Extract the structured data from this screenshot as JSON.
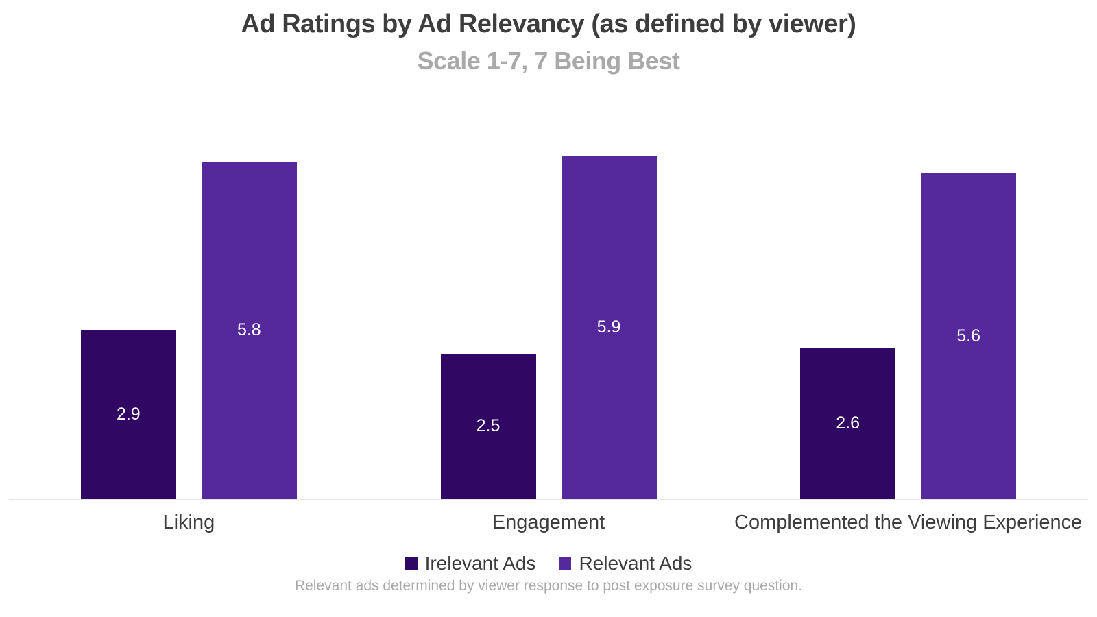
{
  "chart_data": {
    "type": "bar",
    "title": "Ad Ratings by Ad Relevancy (as defined by viewer)",
    "subtitle": "Scale 1-7, 7 Being Best",
    "footnote": "Relevant ads determined by viewer response to post exposure survey question.",
    "categories": [
      "Liking",
      "Engagement",
      "Complemented the Viewing Experience"
    ],
    "series": [
      {
        "name": "Irelevant Ads",
        "color": "#300763",
        "values": [
          2.9,
          2.5,
          2.6
        ]
      },
      {
        "name": "Relevant Ads",
        "color": "#55289b",
        "values": [
          5.8,
          5.9,
          5.6
        ]
      }
    ],
    "ylim": [
      0,
      7
    ],
    "value_labels": true,
    "value_label_color": "#ffffff",
    "legend_position": "bottom",
    "grid": false,
    "axis_line_color": "#e7e7e7"
  },
  "colors": {
    "title": "#3d3d3d",
    "subtitle": "#a9a9a9",
    "category_label": "#3d3d3d",
    "footnote": "#a9a9a9",
    "background": "#ffffff"
  }
}
